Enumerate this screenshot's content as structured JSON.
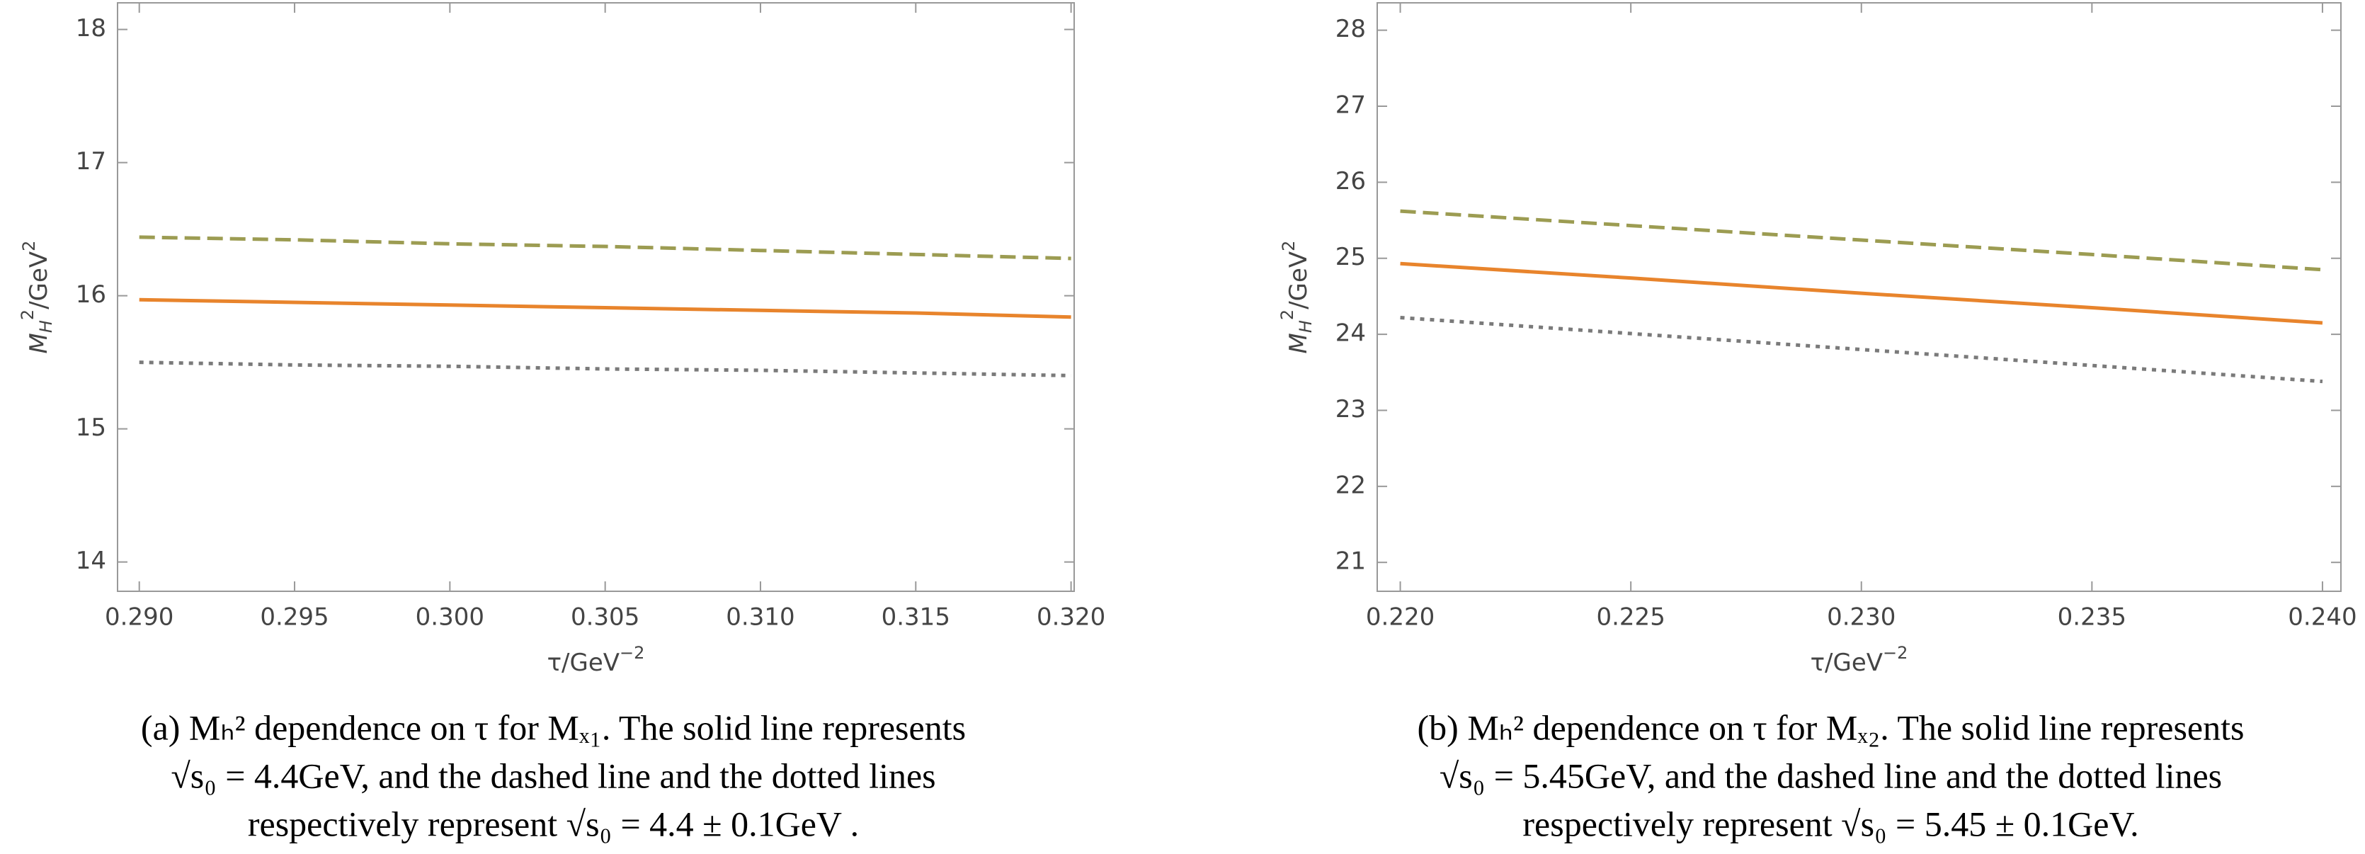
{
  "chart_data": [
    {
      "type": "line",
      "xlabel": {
        "main": "τ/GeV",
        "sup": "−2"
      },
      "ylabel": {
        "main": "M",
        "sub": "H",
        "sup": "2",
        "unit": "/GeV",
        "unit_sup": "2"
      },
      "x": [
        0.29,
        0.295,
        0.3,
        0.305,
        0.31,
        0.315,
        0.32
      ],
      "xlim": [
        0.2893,
        0.3201
      ],
      "ylim": [
        13.78,
        18.2
      ],
      "xticks": [
        {
          "value": 0.29,
          "label": "0.290"
        },
        {
          "value": 0.295,
          "label": "0.295"
        },
        {
          "value": 0.3,
          "label": "0.300"
        },
        {
          "value": 0.305,
          "label": "0.305"
        },
        {
          "value": 0.31,
          "label": "0.310"
        },
        {
          "value": 0.315,
          "label": "0.315"
        },
        {
          "value": 0.32,
          "label": "0.320"
        }
      ],
      "yticks": [
        14,
        15,
        16,
        17,
        18
      ],
      "series": [
        {
          "name": "dashed",
          "color": "#9c9c52",
          "values": [
            16.44,
            16.42,
            16.39,
            16.37,
            16.34,
            16.31,
            16.28
          ]
        },
        {
          "name": "solid",
          "color": "#e8842c",
          "values": [
            15.97,
            15.95,
            15.93,
            15.91,
            15.89,
            15.87,
            15.84
          ]
        },
        {
          "name": "dotted",
          "color": "#7a7a7a",
          "values": [
            15.5,
            15.48,
            15.47,
            15.45,
            15.44,
            15.42,
            15.4
          ]
        }
      ],
      "caption": [
        "(a) Mₕ² dependence on τ for Mₓ₁. The solid line represents",
        "√s₀ = 4.4GeV, and the dashed line and the dotted lines",
        "respectively represent √s₀ = 4.4 ± 0.1GeV ."
      ]
    },
    {
      "type": "line",
      "xlabel": {
        "main": "τ/GeV",
        "sup": "−2"
      },
      "ylabel": {
        "main": "M",
        "sub": "H",
        "sup": "2",
        "unit": "/GeV",
        "unit_sup": "2"
      },
      "x": [
        0.22,
        0.225,
        0.23,
        0.235,
        0.24
      ],
      "xlim": [
        0.2195,
        0.2404
      ],
      "ylim": [
        20.62,
        28.36
      ],
      "xticks": [
        {
          "value": 0.22,
          "label": "0.220"
        },
        {
          "value": 0.225,
          "label": "0.225"
        },
        {
          "value": 0.23,
          "label": "0.230"
        },
        {
          "value": 0.235,
          "label": "0.235"
        },
        {
          "value": 0.24,
          "label": "0.240"
        }
      ],
      "yticks": [
        21,
        22,
        23,
        24,
        25,
        26,
        27,
        28
      ],
      "series": [
        {
          "name": "dashed",
          "color": "#9c9c52",
          "values": [
            25.62,
            25.43,
            25.24,
            25.05,
            24.85
          ]
        },
        {
          "name": "solid",
          "color": "#e8842c",
          "values": [
            24.93,
            24.74,
            24.54,
            24.35,
            24.15
          ]
        },
        {
          "name": "dotted",
          "color": "#7a7a7a",
          "values": [
            24.22,
            24.01,
            23.8,
            23.59,
            23.38
          ]
        }
      ],
      "caption": [
        "(b) Mₕ² dependence on τ for Mₓ₂. The solid line represents",
        "√s₀ = 5.45GeV, and the dashed line and the dotted lines",
        "respectively represent √s₀ = 5.45 ± 0.1GeV."
      ]
    }
  ]
}
